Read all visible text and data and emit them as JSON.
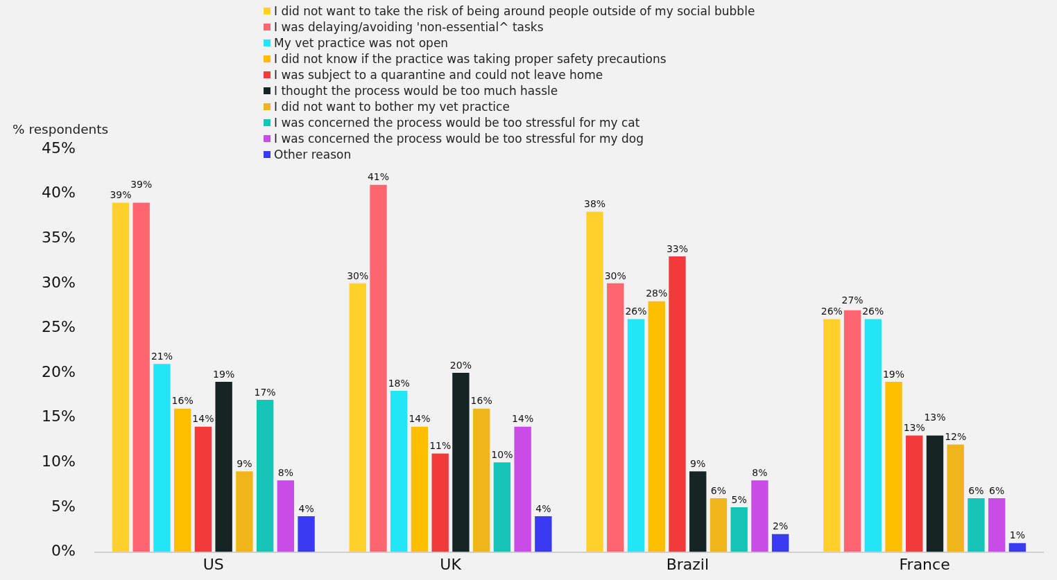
{
  "chart_data": {
    "type": "bar",
    "ylabel": "% respondents",
    "categories": [
      "US",
      "UK",
      "Brazil",
      "France"
    ],
    "series": [
      {
        "name": "I did not want to take the risk of being around people outside of my social bubble",
        "color": "#ffd12a",
        "values": [
          39,
          30,
          38,
          26
        ],
        "value_labels": [
          "39%",
          "30%",
          "38%",
          "26%"
        ]
      },
      {
        "name": "I was delaying/avoiding 'non-essential^ tasks",
        "color": "#ff6670",
        "values": [
          39,
          41,
          30,
          27
        ],
        "value_labels": [
          "39%",
          "41%",
          "30%",
          "27%"
        ]
      },
      {
        "name": "My vet practice was not open",
        "color": "#22e5f5",
        "values": [
          21,
          18,
          26,
          26
        ],
        "value_labels": [
          "21%",
          "18%",
          "26%",
          "26%"
        ]
      },
      {
        "name": "I did not know if the practice was taking proper safety precautions",
        "color": "#ffbe00",
        "values": [
          16,
          14,
          28,
          19
        ],
        "value_labels": [
          "16%",
          "14%",
          "28%",
          "19%"
        ]
      },
      {
        "name": "I was subject to a quarantine and could not leave home",
        "color": "#f23a3a",
        "values": [
          14,
          11,
          33,
          13
        ],
        "value_labels": [
          "14%",
          "11%",
          "33%",
          "13%"
        ]
      },
      {
        "name": "I thought the process would be too much hassle",
        "color": "#172424",
        "values": [
          19,
          20,
          9,
          13
        ],
        "value_labels": [
          "19%",
          "20%",
          "9%",
          "13%"
        ]
      },
      {
        "name": "I did not want to bother my vet practice",
        "color": "#f0b51a",
        "values": [
          9,
          16,
          6,
          12
        ],
        "value_labels": [
          "9%",
          "16%",
          "6%",
          "12%"
        ]
      },
      {
        "name": "I was concerned the process would be too stressful for my cat",
        "color": "#16c4b8",
        "values": [
          17,
          10,
          5,
          6
        ],
        "value_labels": [
          "17%",
          "10%",
          "5%",
          "6%"
        ]
      },
      {
        "name": "I was concerned the process would be too stressful for my dog",
        "color": "#c84de6",
        "values": [
          8,
          14,
          8,
          6
        ],
        "value_labels": [
          "8%",
          "14%",
          "8%",
          "6%"
        ]
      },
      {
        "name": "Other reason",
        "color": "#3a3af0",
        "values": [
          4,
          4,
          2,
          1
        ],
        "value_labels": [
          "4%",
          "4%",
          "2%",
          "1%"
        ]
      }
    ],
    "ylim": [
      0,
      45
    ],
    "yticks": [
      {
        "value": 0,
        "label": "0%"
      },
      {
        "value": 5,
        "label": "5%"
      },
      {
        "value": 10,
        "label": "10%"
      },
      {
        "value": 15,
        "label": "15%"
      },
      {
        "value": 20,
        "label": "20%"
      },
      {
        "value": 25,
        "label": "25%"
      },
      {
        "value": 30,
        "label": "30%"
      },
      {
        "value": 35,
        "label": "35%"
      },
      {
        "value": 40,
        "label": "40%"
      },
      {
        "value": 45,
        "label": "45%"
      }
    ],
    "grid": false,
    "legend": "top"
  }
}
